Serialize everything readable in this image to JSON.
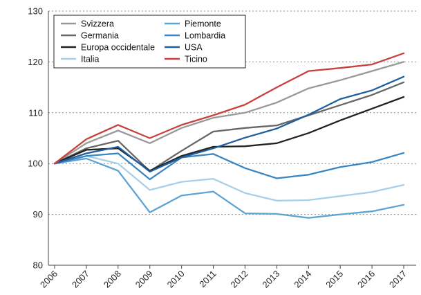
{
  "chart_data": {
    "type": "line",
    "x": [
      "2006",
      "2007",
      "2008",
      "2009",
      "2010",
      "2011",
      "2012",
      "2013",
      "2014",
      "2015",
      "2016",
      "2017"
    ],
    "ylim": [
      80,
      130
    ],
    "yticks": [
      80,
      90,
      100,
      110,
      120,
      130
    ],
    "grid": "horizontal-dashed",
    "legend_placement": "top-left",
    "series": [
      {
        "name": "Svizzera",
        "color": "#999999",
        "values": [
          100,
          104.0,
          106.5,
          104.0,
          107.0,
          109.0,
          110.0,
          112.0,
          114.8,
          116.4,
          118.2,
          120.0
        ]
      },
      {
        "name": "Germania",
        "color": "#666666",
        "values": [
          100,
          103.0,
          104.5,
          98.5,
          102.5,
          106.3,
          107.0,
          107.5,
          109.5,
          111.5,
          113.5,
          116.0
        ]
      },
      {
        "name": "Europa occidentale",
        "color": "#222222",
        "values": [
          100,
          102.7,
          103.0,
          98.6,
          101.5,
          103.3,
          103.4,
          104.0,
          106.0,
          108.5,
          110.8,
          113.1
        ]
      },
      {
        "name": "Italia",
        "color": "#a9cfe8",
        "values": [
          100,
          101.5,
          100.0,
          94.8,
          96.4,
          97.0,
          94.2,
          92.7,
          92.8,
          93.6,
          94.4,
          95.8
        ]
      },
      {
        "name": "Piemonte",
        "color": "#5da3d3",
        "values": [
          100,
          101.0,
          98.6,
          90.4,
          93.7,
          94.5,
          90.2,
          90.1,
          89.3,
          90.0,
          90.6,
          91.9
        ]
      },
      {
        "name": "Lombardia",
        "color": "#3a86c2",
        "values": [
          100,
          101.5,
          102.0,
          96.9,
          101.2,
          101.9,
          99.1,
          97.1,
          97.8,
          99.3,
          100.3,
          102.1
        ]
      },
      {
        "name": "USA",
        "color": "#1f5f9e",
        "values": [
          100,
          102.0,
          103.3,
          98.4,
          101.2,
          103.0,
          105.1,
          106.9,
          109.6,
          112.7,
          114.4,
          117.1
        ]
      },
      {
        "name": "Ticino",
        "color": "#c8403c",
        "values": [
          100,
          104.8,
          107.6,
          105.0,
          107.6,
          109.5,
          111.6,
          115.0,
          118.2,
          118.8,
          119.5,
          121.7
        ]
      }
    ]
  }
}
